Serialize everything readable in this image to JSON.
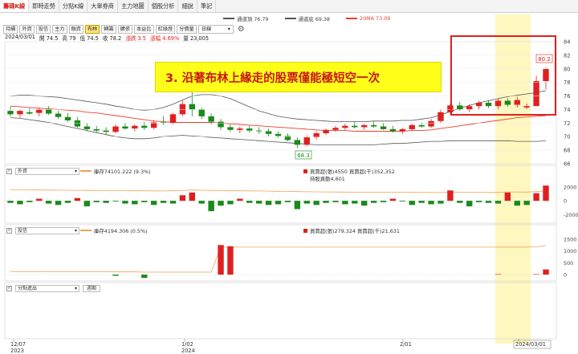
{
  "tabs": [
    "籌碼K線",
    "即時走勢",
    "分點K線",
    "大單券商",
    "主力地圖",
    "個股分析",
    "細說",
    "筆記"
  ],
  "legend_top": [
    {
      "label": "通道頂 76.79",
      "color": "#555555"
    },
    {
      "label": "通道底 69.38",
      "color": "#555555"
    },
    {
      "label": "20MA 73.09",
      "color": "#e8402a"
    }
  ],
  "controls": {
    "buttons": [
      "持續",
      "外資",
      "投信",
      "主力",
      "融資",
      "布林",
      "轉籌",
      "擴張",
      "本益比",
      "紅綠燈",
      "分價量"
    ],
    "selected": "布林",
    "period": "日線"
  },
  "ohlc": {
    "date": "2024/03/01",
    "open": "開 74.5",
    "high": "高 79",
    "low": "低 74.5",
    "close": "收 78.2",
    "change": "漲跌 3.5",
    "pct": "漲幅 4.69%",
    "volume": "量 23,005"
  },
  "annotation": "3. 沿著布林上緣走的股票僅能極短空一次",
  "price_labels": {
    "high": "80.2",
    "low": "68.3"
  },
  "price_axis": [
    "84",
    "82",
    "80",
    "78",
    "76",
    "74",
    "72",
    "70",
    "68",
    "66"
  ],
  "panel_foreign": {
    "selector": "外資",
    "holding": "庫存74101.222 (9.3%)",
    "buysell": "買賣超(張)4550 買賣超(千)352,352",
    "holding_change": "持股異動4,601",
    "axis": [
      "2000",
      "0",
      "-2000"
    ]
  },
  "panel_trust": {
    "selector": "投信",
    "holding": "庫存4194.306 (0.5%)",
    "buysell": "買賣超(張)279.324 買賣超(千)21,631",
    "axis": [
      "1500",
      "1000",
      "500",
      "0"
    ]
  },
  "panel_branch": {
    "selector": "分點進出",
    "button": "週期"
  },
  "date_axis": [
    {
      "label": "12/07",
      "sub": "2023"
    },
    {
      "label": "1/02",
      "sub": "2024"
    },
    {
      "label": "2/01",
      "sub": ""
    },
    {
      "label": "2024/03/01",
      "sub": ""
    }
  ],
  "colors": {
    "up": "#e02020",
    "down": "#1a8a1a",
    "ma": "#e8402a",
    "band": "#555555",
    "highlight": "#fff7c0",
    "box": "#e02020"
  },
  "chart_data": {
    "type": "candlestick",
    "ylim": [
      66,
      84
    ],
    "candles": [
      {
        "o": 73.8,
        "h": 74.4,
        "l": 73.0,
        "c": 73.3
      },
      {
        "o": 73.3,
        "h": 74.0,
        "l": 72.8,
        "c": 73.8
      },
      {
        "o": 73.6,
        "h": 74.2,
        "l": 73.2,
        "c": 73.4
      },
      {
        "o": 73.5,
        "h": 74.3,
        "l": 73.0,
        "c": 74.0
      },
      {
        "o": 74.0,
        "h": 74.5,
        "l": 73.2,
        "c": 73.4
      },
      {
        "o": 73.4,
        "h": 73.8,
        "l": 72.6,
        "c": 72.9
      },
      {
        "o": 72.9,
        "h": 73.5,
        "l": 72.2,
        "c": 72.4
      },
      {
        "o": 72.4,
        "h": 72.9,
        "l": 71.3,
        "c": 71.5
      },
      {
        "o": 71.5,
        "h": 72.0,
        "l": 70.8,
        "c": 71.1
      },
      {
        "o": 71.1,
        "h": 71.6,
        "l": 70.6,
        "c": 70.9
      },
      {
        "o": 70.9,
        "h": 71.4,
        "l": 70.3,
        "c": 70.7
      },
      {
        "o": 70.7,
        "h": 71.8,
        "l": 70.5,
        "c": 71.5
      },
      {
        "o": 71.5,
        "h": 72.0,
        "l": 71.0,
        "c": 71.2
      },
      {
        "o": 71.2,
        "h": 71.8,
        "l": 70.8,
        "c": 71.6
      },
      {
        "o": 71.6,
        "h": 72.2,
        "l": 71.0,
        "c": 71.3
      },
      {
        "o": 71.3,
        "h": 72.4,
        "l": 71.1,
        "c": 72.1
      },
      {
        "o": 72.1,
        "h": 73.0,
        "l": 71.7,
        "c": 72.0
      },
      {
        "o": 72.0,
        "h": 73.5,
        "l": 71.8,
        "c": 73.3
      },
      {
        "o": 73.3,
        "h": 75.3,
        "l": 73.0,
        "c": 74.8
      },
      {
        "o": 74.8,
        "h": 76.6,
        "l": 73.0,
        "c": 74.0
      },
      {
        "o": 74.0,
        "h": 74.3,
        "l": 72.6,
        "c": 73.0
      },
      {
        "o": 73.0,
        "h": 73.4,
        "l": 71.8,
        "c": 72.2
      },
      {
        "o": 72.2,
        "h": 72.6,
        "l": 71.0,
        "c": 71.4
      },
      {
        "o": 71.4,
        "h": 71.8,
        "l": 70.7,
        "c": 71.0
      },
      {
        "o": 71.0,
        "h": 71.5,
        "l": 70.5,
        "c": 71.2
      },
      {
        "o": 71.2,
        "h": 71.6,
        "l": 70.6,
        "c": 70.9
      },
      {
        "o": 70.9,
        "h": 71.4,
        "l": 70.4,
        "c": 70.8
      },
      {
        "o": 70.8,
        "h": 71.2,
        "l": 70.0,
        "c": 70.4
      },
      {
        "o": 70.4,
        "h": 70.8,
        "l": 69.8,
        "c": 70.1
      },
      {
        "o": 70.1,
        "h": 70.5,
        "l": 69.3,
        "c": 69.5
      },
      {
        "o": 69.5,
        "h": 69.9,
        "l": 68.3,
        "c": 68.8
      },
      {
        "o": 68.8,
        "h": 70.2,
        "l": 68.6,
        "c": 69.9
      },
      {
        "o": 69.9,
        "h": 70.8,
        "l": 69.6,
        "c": 70.5
      },
      {
        "o": 70.5,
        "h": 71.2,
        "l": 70.2,
        "c": 71.0
      },
      {
        "o": 71.0,
        "h": 71.6,
        "l": 70.7,
        "c": 71.3
      },
      {
        "o": 71.3,
        "h": 71.9,
        "l": 71.0,
        "c": 71.6
      },
      {
        "o": 71.6,
        "h": 72.2,
        "l": 71.2,
        "c": 71.4
      },
      {
        "o": 71.4,
        "h": 71.9,
        "l": 71.0,
        "c": 71.7
      },
      {
        "o": 71.7,
        "h": 72.3,
        "l": 71.3,
        "c": 71.5
      },
      {
        "o": 71.5,
        "h": 72.0,
        "l": 71.0,
        "c": 71.1
      },
      {
        "o": 71.1,
        "h": 71.6,
        "l": 70.6,
        "c": 70.8
      },
      {
        "o": 70.8,
        "h": 71.3,
        "l": 70.4,
        "c": 71.1
      },
      {
        "o": 71.1,
        "h": 71.9,
        "l": 70.9,
        "c": 71.7
      },
      {
        "o": 71.7,
        "h": 72.1,
        "l": 71.3,
        "c": 71.5
      },
      {
        "o": 71.5,
        "h": 72.6,
        "l": 71.3,
        "c": 72.3
      },
      {
        "o": 72.3,
        "h": 74.0,
        "l": 72.0,
        "c": 73.6
      },
      {
        "o": 73.6,
        "h": 74.8,
        "l": 73.3,
        "c": 74.6
      },
      {
        "o": 74.6,
        "h": 75.1,
        "l": 73.8,
        "c": 74.0
      },
      {
        "o": 74.0,
        "h": 74.8,
        "l": 73.6,
        "c": 74.5
      },
      {
        "o": 74.5,
        "h": 75.3,
        "l": 74.0,
        "c": 75.0
      },
      {
        "o": 75.0,
        "h": 75.4,
        "l": 74.2,
        "c": 74.5
      },
      {
        "o": 74.5,
        "h": 75.6,
        "l": 74.0,
        "c": 75.3
      },
      {
        "o": 75.3,
        "h": 75.7,
        "l": 74.4,
        "c": 74.7
      },
      {
        "o": 74.7,
        "h": 75.9,
        "l": 74.3,
        "c": 75.4
      },
      {
        "o": 74.3,
        "h": 74.9,
        "l": 74.0,
        "c": 74.5
      },
      {
        "o": 74.5,
        "h": 79.0,
        "l": 74.5,
        "c": 78.2
      },
      {
        "o": 78.2,
        "h": 80.2,
        "l": 77.0,
        "c": 80.0
      }
    ],
    "ma20": [
      74.5,
      74.4,
      74.3,
      74.2,
      74.1,
      74.0,
      73.9,
      73.8,
      73.6,
      73.5,
      73.3,
      73.1,
      72.9,
      72.7,
      72.5,
      72.3,
      72.2,
      72.1,
      72.1,
      72.1,
      72.1,
      72.1,
      72.0,
      71.9,
      71.8,
      71.7,
      71.6,
      71.5,
      71.4,
      71.3,
      71.2,
      71.1,
      71.0,
      70.9,
      70.9,
      70.9,
      70.8,
      70.8,
      70.8,
      70.8,
      70.8,
      70.8,
      70.9,
      70.9,
      71.0,
      71.2,
      71.4,
      71.6,
      71.8,
      72.0,
      72.2,
      72.4,
      72.6,
      72.8,
      72.9,
      73.0,
      73.09
    ],
    "upper": [
      76.0,
      76.1,
      76.1,
      76.0,
      75.9,
      75.8,
      75.6,
      75.4,
      75.2,
      75.0,
      74.8,
      74.5,
      74.3,
      74.0,
      73.9,
      74.0,
      74.3,
      74.8,
      75.4,
      76.0,
      76.2,
      76.2,
      76.0,
      75.6,
      75.0,
      74.4,
      73.8,
      73.4,
      73.0,
      72.8,
      72.6,
      72.5,
      72.4,
      72.3,
      72.2,
      72.2,
      72.2,
      72.2,
      72.3,
      72.3,
      72.3,
      72.4,
      72.4,
      72.6,
      72.8,
      73.2,
      73.7,
      74.2,
      74.6,
      75.0,
      75.3,
      75.6,
      75.9,
      76.1,
      76.3,
      76.5,
      76.79
    ],
    "lower": [
      72.8,
      72.7,
      72.5,
      72.3,
      72.1,
      71.8,
      71.5,
      71.2,
      70.9,
      70.6,
      70.3,
      70.0,
      69.8,
      69.7,
      69.7,
      69.8,
      70.0,
      70.1,
      70.2,
      70.1,
      70.0,
      69.9,
      69.8,
      69.7,
      69.6,
      69.5,
      69.4,
      69.3,
      69.2,
      69.1,
      69.0,
      68.9,
      68.8,
      68.8,
      68.8,
      68.8,
      68.8,
      68.8,
      68.8,
      68.9,
      69.0,
      69.0,
      69.1,
      69.2,
      69.3,
      69.3,
      69.4,
      69.4,
      69.4,
      69.4,
      69.4,
      69.4,
      69.4,
      69.3,
      69.3,
      69.3,
      69.38
    ],
    "foreign_bars": [
      -300,
      -500,
      -200,
      300,
      -400,
      -600,
      -300,
      400,
      -800,
      -200,
      -300,
      -100,
      -400,
      -500,
      -200,
      -600,
      -300,
      -400,
      800,
      1200,
      -400,
      -1500,
      -700,
      -500,
      300,
      -300,
      -400,
      -600,
      -500,
      -200,
      -1200,
      -400,
      -600,
      -300,
      -200,
      -500,
      -400,
      -700,
      -300,
      -200,
      300,
      -100,
      -600,
      -300,
      -500,
      -400,
      1500,
      -300,
      -800,
      -200,
      -300,
      -400,
      1200,
      -700,
      -600,
      1100,
      2200
    ],
    "foreign_line": [
      1600,
      1580,
      1570,
      1560,
      1550,
      1540,
      1530,
      1520,
      1500,
      1490,
      1480,
      1470,
      1460,
      1450,
      1440,
      1430,
      1420,
      1440,
      1480,
      1560,
      1540,
      1500,
      1470,
      1450,
      1440,
      1430,
      1420,
      1400,
      1380,
      1360,
      1330,
      1310,
      1290,
      1280,
      1270,
      1260,
      1250,
      1240,
      1230,
      1220,
      1230,
      1230,
      1220,
      1210,
      1200,
      1190,
      1260,
      1250,
      1230,
      1220,
      1210,
      1200,
      1280,
      1270,
      1260,
      1330,
      1420
    ],
    "trust_bars": [
      0,
      0,
      0,
      0,
      0,
      0,
      0,
      0,
      0,
      0,
      0,
      -50,
      0,
      0,
      -140,
      0,
      0,
      0,
      0,
      0,
      0,
      0,
      1250,
      1200,
      0,
      0,
      0,
      0,
      0,
      0,
      0,
      0,
      0,
      0,
      0,
      0,
      0,
      0,
      0,
      0,
      0,
      0,
      0,
      0,
      0,
      0,
      0,
      0,
      0,
      0,
      0,
      20,
      0,
      0,
      0,
      20,
      220
    ],
    "trust_line": [
      120,
      120,
      120,
      120,
      120,
      120,
      120,
      120,
      120,
      120,
      120,
      115,
      115,
      115,
      105,
      105,
      105,
      105,
      105,
      105,
      105,
      105,
      1160,
      1160,
      1160,
      1160,
      1160,
      1160,
      1160,
      1160,
      1160,
      1160,
      1160,
      1160,
      1160,
      1160,
      1160,
      1160,
      1160,
      1160,
      1160,
      1160,
      1160,
      1160,
      1160,
      1160,
      1160,
      1160,
      1160,
      1160,
      1160,
      1165,
      1165,
      1165,
      1165,
      1170,
      1230
    ],
    "trust_ylim": [
      -200,
      1700
    ],
    "foreign_ylim": [
      -3000,
      3500
    ]
  }
}
